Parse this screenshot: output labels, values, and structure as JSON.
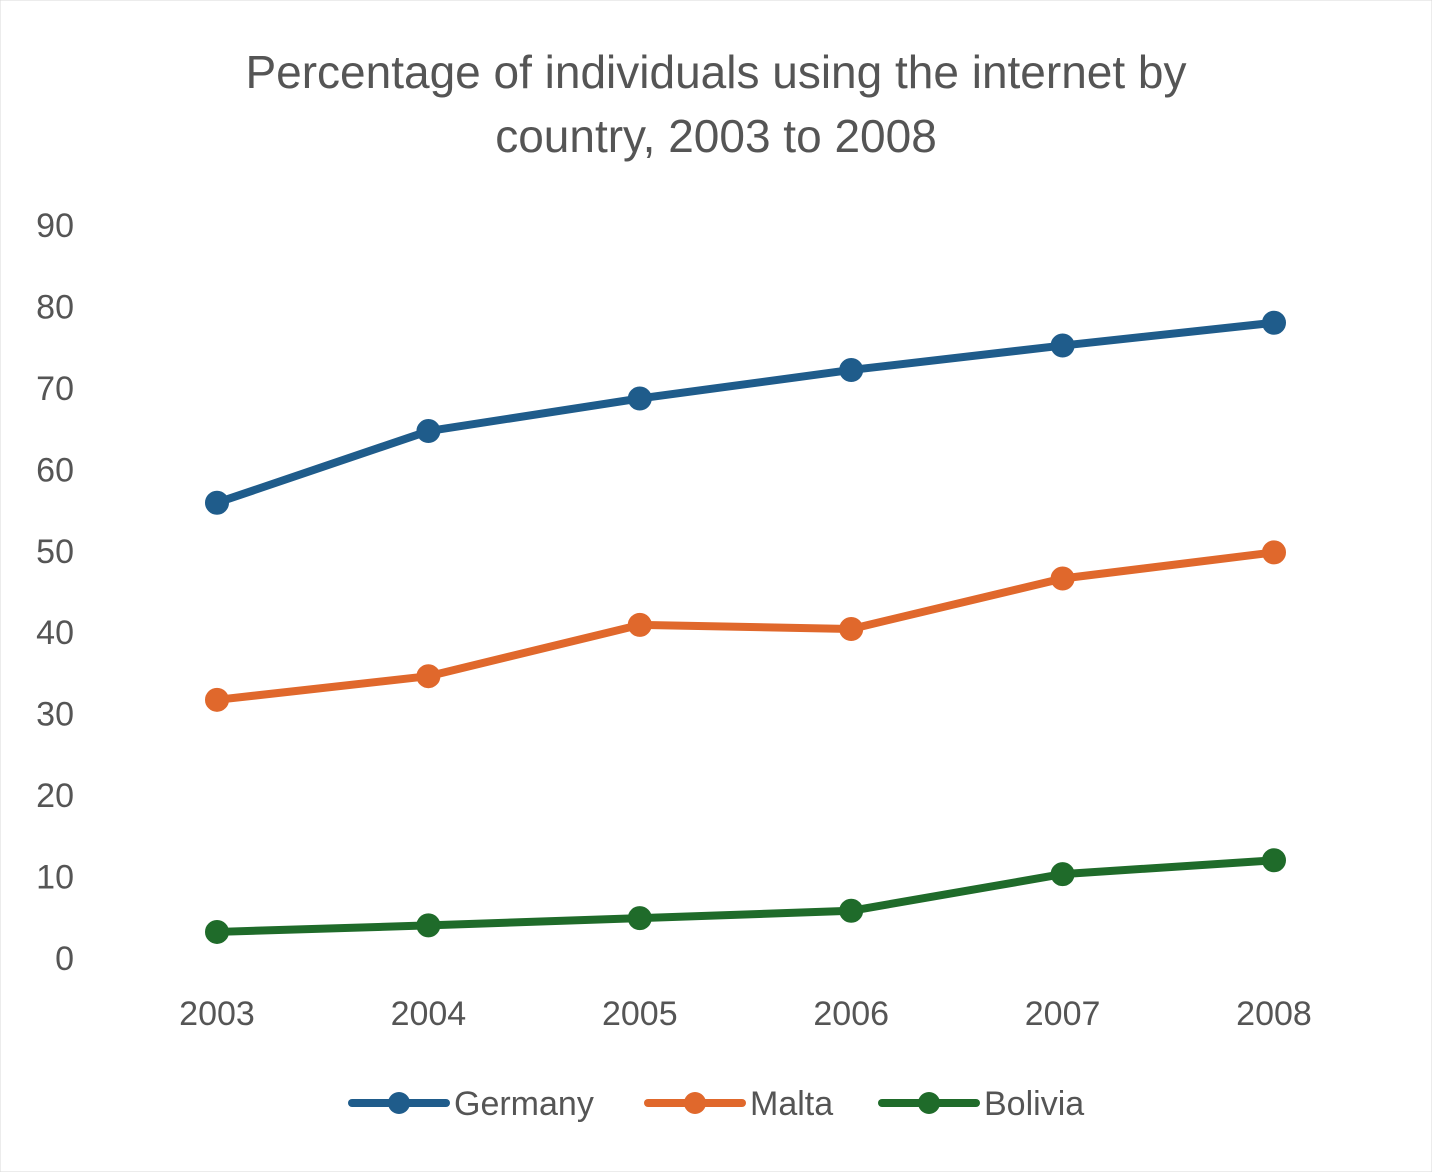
{
  "chart_data": {
    "type": "line",
    "title": "Percentage of individuals using the internet by country, 2003 to 2008",
    "title_lines": [
      "Percentage of individuals using the internet by",
      "country, 2003 to 2008"
    ],
    "categories": [
      "2003",
      "2004",
      "2005",
      "2006",
      "2007",
      "2008"
    ],
    "y_ticks": [
      0,
      10,
      20,
      30,
      40,
      50,
      60,
      70,
      80,
      90
    ],
    "ylim": [
      0,
      90
    ],
    "grid": false,
    "legend_position": "bottom",
    "series": [
      {
        "name": "Germany",
        "color": "#1f5c8b",
        "values": [
          55.9,
          64.7,
          68.7,
          72.2,
          75.2,
          78.0
        ]
      },
      {
        "name": "Malta",
        "color": "#e0682c",
        "values": [
          31.7,
          34.6,
          40.9,
          40.4,
          46.6,
          49.8
        ]
      },
      {
        "name": "Bolivia",
        "color": "#1f6b2a",
        "values": [
          3.2,
          4.0,
          4.9,
          5.8,
          10.3,
          12.0
        ]
      }
    ]
  }
}
